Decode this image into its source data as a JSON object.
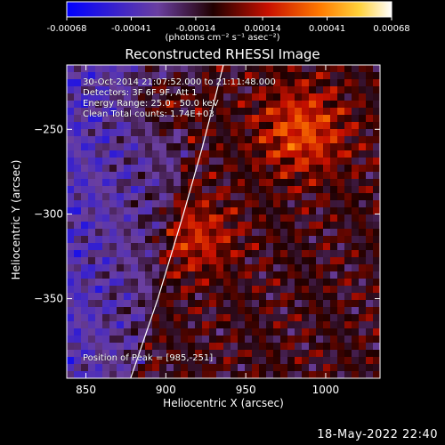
{
  "colorbar": {
    "tick_labels": [
      "-0.00068",
      "-0.00041",
      "-0.00014",
      "0.00014",
      "0.00041",
      "0.00068"
    ],
    "unit_label": "(photons cm⁻² s⁻¹ asec⁻²)",
    "range": [
      -0.00068,
      0.00068
    ],
    "colormap": "blue-purple-red-yellow-white"
  },
  "plot": {
    "title": "Reconstructed RHESSI Image",
    "annotations": {
      "time": "30-Oct-2014 21:07:52.000 to 21:11:48.000",
      "detectors": "Detectors: 3F 6F 9F, Att 1",
      "energy": "Energy Range: 25.0 - 50.0 keV",
      "clean": "Clean      Total counts: 1.74E+03",
      "peak": "Position of Peak = [985,-251]"
    }
  },
  "chart_data": {
    "type": "heatmap",
    "title": "Reconstructed RHESSI Image",
    "xlabel": "Heliocentric X (arcsec)",
    "ylabel": "Heliocentric Y (arcsec)",
    "xlim": [
      838,
      1034
    ],
    "ylim": [
      -397,
      -212
    ],
    "x_ticks": [
      850,
      900,
      950,
      1000
    ],
    "y_ticks": [
      -250,
      -300,
      -350
    ],
    "x_tick_labels": [
      "850",
      "900",
      "950",
      "1000"
    ],
    "y_tick_labels": [
      "−250",
      "−300",
      "−350"
    ],
    "peak_position": [
      985,
      -251
    ],
    "limb_curve": [
      [
        878,
        -397
      ],
      [
        895,
        -350
      ],
      [
        911,
        -300
      ],
      [
        923,
        -260
      ],
      [
        936,
        -212
      ]
    ]
  },
  "footer": {
    "date": "18-May-2022 22:40"
  }
}
